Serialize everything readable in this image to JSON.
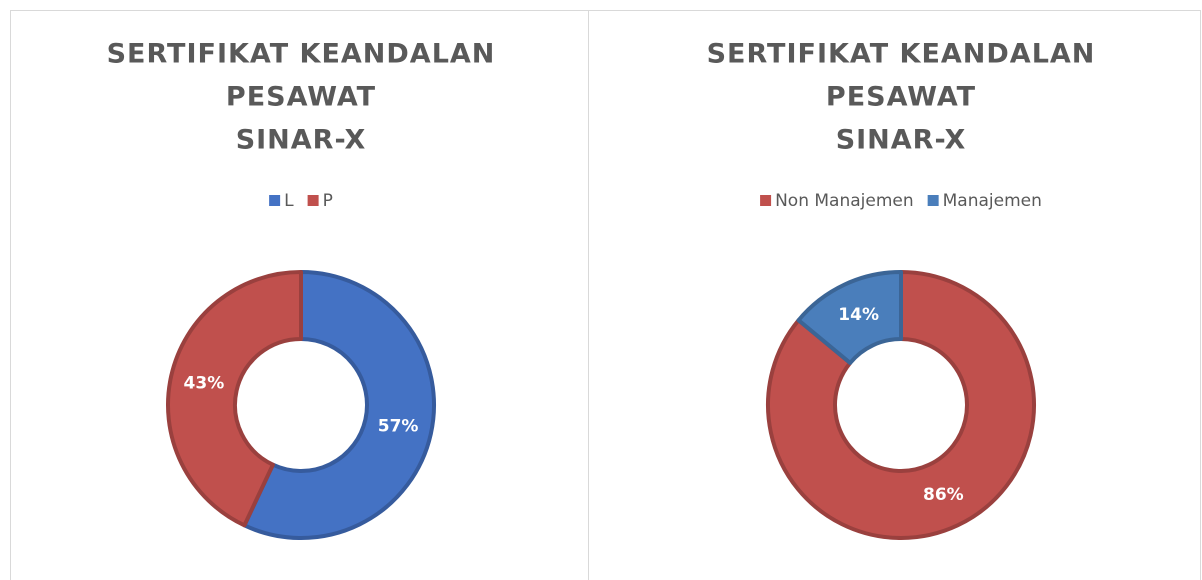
{
  "chart_data": [
    {
      "type": "donut",
      "title": [
        "SERTIFIKAT KEANDALAN",
        "PESAWAT",
        "SINAR-X"
      ],
      "categories": [
        "L",
        "P"
      ],
      "values": [
        57,
        43
      ],
      "value_labels": [
        "57%",
        "43%"
      ],
      "colors": [
        "#4472c4",
        "#c0504d"
      ],
      "legend": "top"
    },
    {
      "type": "donut",
      "title": [
        "SERTIFIKAT KEANDALAN",
        "PESAWAT",
        "SINAR-X"
      ],
      "categories": [
        "Non Manajemen",
        "Manajemen"
      ],
      "values": [
        86,
        14
      ],
      "value_labels": [
        "86%",
        "14%"
      ],
      "colors": [
        "#c0504d",
        "#4a7ebb"
      ],
      "legend": "top"
    }
  ]
}
